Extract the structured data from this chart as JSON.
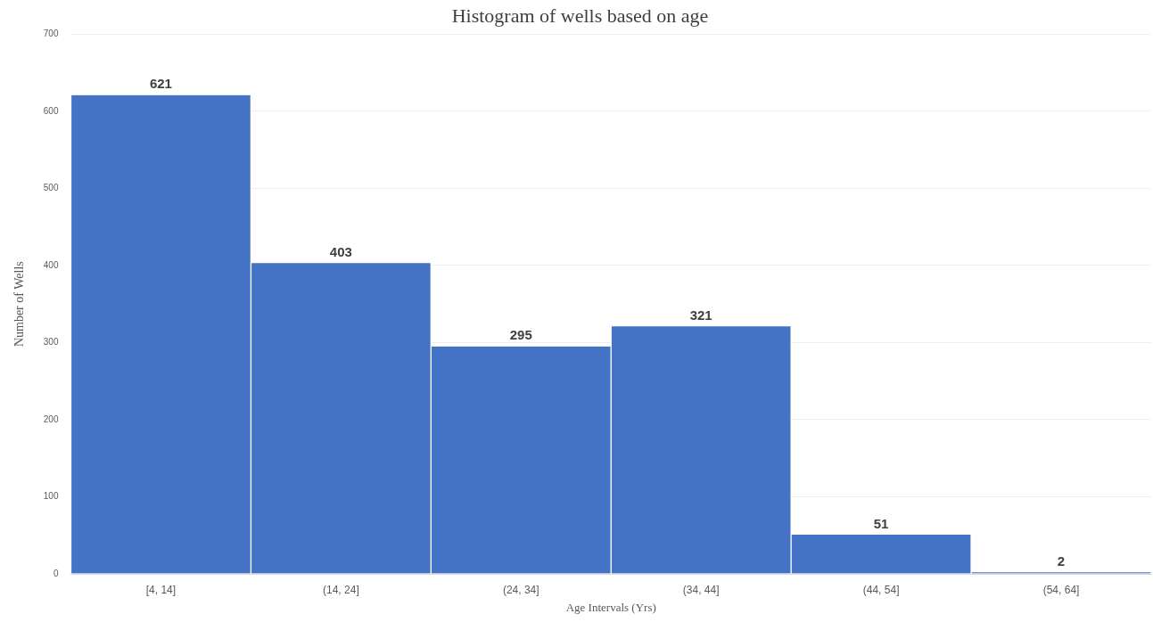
{
  "chart_data": {
    "type": "bar",
    "title": "Histogram of wells based on age",
    "xlabel": "Age Intervals (Yrs)",
    "ylabel": "Number of Wells",
    "categories": [
      "[4, 14]",
      "(14, 24]",
      "(24, 34]",
      "(34, 44]",
      "(44, 54]",
      "(54, 64]"
    ],
    "values": [
      621,
      403,
      295,
      321,
      51,
      2
    ],
    "color": "#4472c4",
    "ylim": [
      0,
      700
    ],
    "yticks": [
      0,
      100,
      200,
      300,
      400,
      500,
      600,
      700
    ],
    "grid": "y",
    "data_labels": true,
    "legend": false
  }
}
